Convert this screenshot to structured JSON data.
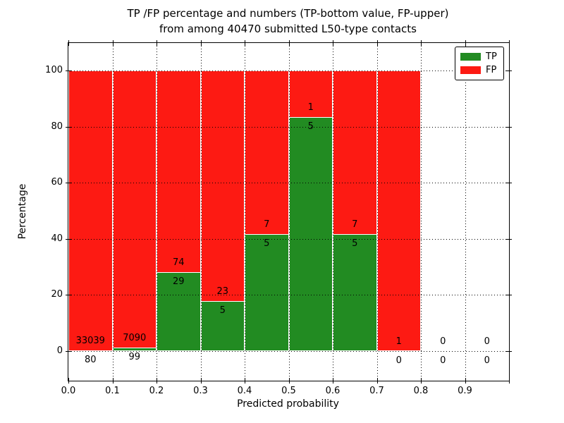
{
  "chart_data": {
    "type": "stacked_bar",
    "title_line1": "TP /FP percentage and numbers (TP-bottom value, FP-upper)",
    "title_line2": "from among 40470 submitted L50-type contacts",
    "xlabel": "Predicted probability",
    "ylabel": "Percentage",
    "total_contacts": 40470,
    "bin_width": 0.1,
    "bins": [
      0.0,
      0.1,
      0.2,
      0.3,
      0.4,
      0.5,
      0.6,
      0.7,
      0.8,
      0.9
    ],
    "series": [
      {
        "name": "TP",
        "color": "#228b22",
        "counts": [
          80,
          99,
          29,
          5,
          5,
          5,
          5,
          0,
          0,
          0
        ]
      },
      {
        "name": "FP",
        "color": "#fd1a13",
        "counts": [
          33039,
          7090,
          74,
          23,
          7,
          1,
          7,
          1,
          0,
          0
        ]
      }
    ],
    "tp_percent": [
      0.24,
      1.38,
      28.16,
      17.86,
      41.67,
      83.33,
      41.67,
      0.0,
      null,
      null
    ],
    "bar_total_percent": [
      100,
      100,
      100,
      100,
      100,
      100,
      100,
      100,
      null,
      null
    ],
    "x_tick_labels": [
      "0.0",
      "0.1",
      "0.2",
      "0.3",
      "0.4",
      "0.5",
      "0.6",
      "0.7",
      "0.8",
      "0.9"
    ],
    "x_tick_marks": [
      0.0,
      0.1,
      0.2,
      0.3,
      0.4,
      0.5,
      0.6,
      0.7,
      0.8,
      0.9,
      1.0
    ],
    "y_ticks": [
      0,
      20,
      40,
      60,
      80,
      100
    ],
    "xlim": [
      0.0,
      1.0
    ],
    "ylim": [
      -10.55,
      109.8
    ],
    "grid": "dotted",
    "legend": {
      "position": "upper right",
      "items": [
        {
          "label": "TP",
          "color": "#228b22"
        },
        {
          "label": "FP",
          "color": "#fd1a13"
        }
      ]
    },
    "colors": {
      "bar_edge": "#ffffff",
      "grid": "#000000",
      "text": "#000000",
      "background": "#ffffff"
    }
  }
}
